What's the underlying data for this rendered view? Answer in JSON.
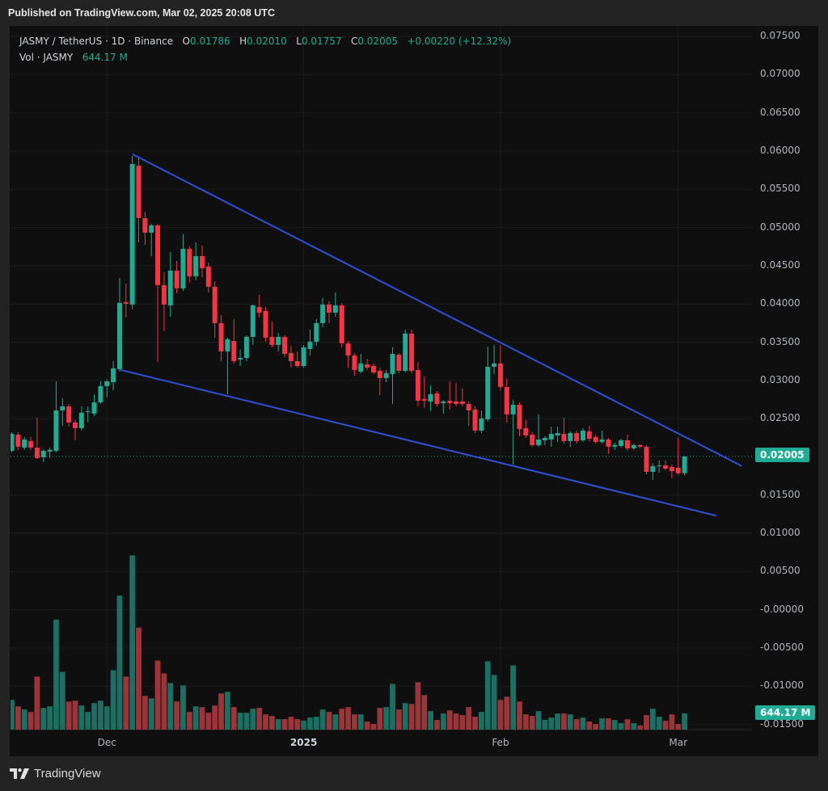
{
  "header": {
    "published": "Published on TradingView.com, Mar 02, 2025 20:08 UTC"
  },
  "legend": {
    "symbol": "JASMY / TetherUS · 1D · Binance",
    "o_label": "O",
    "o_value": "0.01786",
    "h_label": "H",
    "h_value": "0.02010",
    "l_label": "L",
    "l_value": "0.01757",
    "c_label": "C",
    "c_value": "0.02005",
    "change": "+0.00220 (+12.32%)",
    "vol_label": "Vol · JASMY",
    "vol_value": "644.17 M"
  },
  "price_tag": "0.02005",
  "volume_tag": "644.17 M",
  "brand": "TradingView",
  "colors": {
    "up": "#22ab94",
    "down": "#f23645",
    "up_volume": "#1d6f63",
    "down_volume": "#9b3539",
    "trendline": "#2f50d8",
    "background": "#0f0f0f"
  },
  "chart_data": {
    "type": "candlestick",
    "symbol": "JASMY / TetherUS",
    "interval": "1D",
    "exchange": "Binance",
    "ylim": [
      -0.0155,
      0.0765
    ],
    "grid": true,
    "price_axis_labels": [
      "0.07500",
      "0.07000",
      "0.06500",
      "0.06000",
      "0.05500",
      "0.05000",
      "0.04500",
      "0.04000",
      "0.03500",
      "0.03000",
      "0.02500",
      "0.01500",
      "0.01000",
      "0.00500",
      "-0.00000",
      "-0.00500",
      "-0.01000",
      "-0.01500"
    ],
    "time_axis_labels": [
      {
        "label": "Dec",
        "date": "2024-12-01",
        "bold": false
      },
      {
        "label": "2025",
        "date": "2025-01-01",
        "bold": true
      },
      {
        "label": "Feb",
        "date": "2025-02-01",
        "bold": false
      },
      {
        "label": "Mar",
        "date": "2025-03-01",
        "bold": false
      }
    ],
    "columns": [
      "date",
      "open",
      "high",
      "low",
      "close",
      "volume_M"
    ],
    "candles": [
      [
        "2024-11-16",
        0.02079,
        0.02322,
        0.02058,
        0.02301,
        1184
      ],
      [
        "2024-11-17",
        0.0229,
        0.02322,
        0.0209,
        0.02132,
        928
      ],
      [
        "2024-11-18",
        0.02121,
        0.02259,
        0.0209,
        0.02227,
        800
      ],
      [
        "2024-11-19",
        0.02206,
        0.02259,
        0.0209,
        0.02121,
        704
      ],
      [
        "2024-11-20",
        0.02121,
        0.02512,
        0.01973,
        0.01984,
        2112
      ],
      [
        "2024-11-21",
        0.01994,
        0.021,
        0.01931,
        0.02079,
        864
      ],
      [
        "2024-11-22",
        0.02068,
        0.02121,
        0.01984,
        0.0209,
        928
      ],
      [
        "2024-11-23",
        0.02079,
        0.02988,
        0.02058,
        0.02607,
        4384
      ],
      [
        "2024-11-24",
        0.02607,
        0.02766,
        0.02407,
        0.0266,
        2304
      ],
      [
        "2024-11-25",
        0.0266,
        0.02692,
        0.02396,
        0.02449,
        1120
      ],
      [
        "2024-11-26",
        0.02449,
        0.02481,
        0.02216,
        0.02375,
        1152
      ],
      [
        "2024-11-27",
        0.02375,
        0.0266,
        0.02343,
        0.02576,
        960
      ],
      [
        "2024-11-28",
        0.02586,
        0.0266,
        0.02449,
        0.02597,
        704
      ],
      [
        "2024-11-29",
        0.02565,
        0.02819,
        0.02533,
        0.02713,
        1056
      ],
      [
        "2024-11-30",
        0.02713,
        0.02988,
        0.02692,
        0.02925,
        1152
      ],
      [
        "2024-12-01",
        0.02925,
        0.0301,
        0.02777,
        0.02988,
        928
      ],
      [
        "2024-12-02",
        0.02977,
        0.03252,
        0.02872,
        0.03157,
        2368
      ],
      [
        "2024-12-03",
        0.03147,
        0.04341,
        0.03115,
        0.04013,
        5344
      ],
      [
        "2024-12-04",
        0.04024,
        0.04267,
        0.03823,
        0.04003,
        2112
      ],
      [
        "2024-12-05",
        0.03992,
        0.05937,
        0.03929,
        0.05831,
        6944
      ],
      [
        "2024-12-06",
        0.0581,
        0.05916,
        0.04806,
        0.05123,
        4064
      ],
      [
        "2024-12-07",
        0.05123,
        0.05208,
        0.04774,
        0.04933,
        1344
      ],
      [
        "2024-12-08",
        0.04933,
        0.05049,
        0.04626,
        0.05028,
        1248
      ],
      [
        "2024-12-09",
        0.05028,
        0.05049,
        0.03242,
        0.04246,
        2752
      ],
      [
        "2024-12-10",
        0.04246,
        0.04415,
        0.03643,
        0.03992,
        2240
      ],
      [
        "2024-12-11",
        0.03982,
        0.04679,
        0.03834,
        0.04436,
        1856
      ],
      [
        "2024-12-12",
        0.04436,
        0.04563,
        0.0414,
        0.04204,
        1120
      ],
      [
        "2024-12-13",
        0.04204,
        0.04912,
        0.04172,
        0.04721,
        1760
      ],
      [
        "2024-12-14",
        0.04721,
        0.04753,
        0.04278,
        0.04362,
        704
      ],
      [
        "2024-12-15",
        0.04362,
        0.04806,
        0.04309,
        0.04626,
        928
      ],
      [
        "2024-12-16",
        0.04626,
        0.04764,
        0.04352,
        0.04468,
        896
      ],
      [
        "2024-12-17",
        0.04489,
        0.04542,
        0.04151,
        0.04225,
        672
      ],
      [
        "2024-12-18",
        0.04225,
        0.04299,
        0.03559,
        0.03749,
        960
      ],
      [
        "2024-12-19",
        0.03749,
        0.03855,
        0.03252,
        0.03379,
        1440
      ],
      [
        "2024-12-20",
        0.03379,
        0.03559,
        0.02819,
        0.03538,
        1504
      ],
      [
        "2024-12-21",
        0.03516,
        0.03802,
        0.03221,
        0.03252,
        896
      ],
      [
        "2024-12-22",
        0.03273,
        0.034,
        0.03189,
        0.03294,
        672
      ],
      [
        "2024-12-23",
        0.03294,
        0.0359,
        0.03252,
        0.03569,
        672
      ],
      [
        "2024-12-24",
        0.03569,
        0.03992,
        0.03464,
        0.03982,
        832
      ],
      [
        "2024-12-25",
        0.0396,
        0.04119,
        0.03823,
        0.03886,
        864
      ],
      [
        "2024-12-26",
        0.03908,
        0.0396,
        0.03506,
        0.03559,
        608
      ],
      [
        "2024-12-27",
        0.03569,
        0.0377,
        0.03432,
        0.03464,
        544
      ],
      [
        "2024-12-28",
        0.03464,
        0.03622,
        0.03379,
        0.03569,
        416
      ],
      [
        "2024-12-29",
        0.03569,
        0.0359,
        0.03305,
        0.03347,
        416
      ],
      [
        "2024-12-30",
        0.03358,
        0.03453,
        0.03168,
        0.03252,
        512
      ],
      [
        "2024-12-31",
        0.03252,
        0.03379,
        0.03168,
        0.03189,
        416
      ],
      [
        "2025-01-01",
        0.03189,
        0.03464,
        0.03168,
        0.03432,
        352
      ],
      [
        "2025-01-02",
        0.03411,
        0.03664,
        0.03326,
        0.03506,
        480
      ],
      [
        "2025-01-03",
        0.03506,
        0.03802,
        0.03453,
        0.03749,
        512
      ],
      [
        "2025-01-04",
        0.03749,
        0.04077,
        0.03696,
        0.03992,
        800
      ],
      [
        "2025-01-05",
        0.03992,
        0.04034,
        0.03749,
        0.03886,
        704
      ],
      [
        "2025-01-06",
        0.03886,
        0.04151,
        0.03834,
        0.03982,
        608
      ],
      [
        "2025-01-07",
        0.03982,
        0.04013,
        0.03432,
        0.03485,
        832
      ],
      [
        "2025-01-08",
        0.03485,
        0.03516,
        0.03168,
        0.03326,
        896
      ],
      [
        "2025-01-09",
        0.03326,
        0.03358,
        0.03062,
        0.03136,
        608
      ],
      [
        "2025-01-10",
        0.03115,
        0.03347,
        0.03094,
        0.03221,
        608
      ],
      [
        "2025-01-11",
        0.0321,
        0.03284,
        0.03136,
        0.03168,
        320
      ],
      [
        "2025-01-12",
        0.03189,
        0.03221,
        0.03083,
        0.03104,
        224
      ],
      [
        "2025-01-13",
        0.03125,
        0.03168,
        0.02808,
        0.0303,
        864
      ],
      [
        "2025-01-14",
        0.0303,
        0.03136,
        0.02977,
        0.03094,
        896
      ],
      [
        "2025-01-15",
        0.03083,
        0.03432,
        0.02692,
        0.03347,
        1824
      ],
      [
        "2025-01-16",
        0.03337,
        0.03358,
        0.03094,
        0.03125,
        800
      ],
      [
        "2025-01-17",
        0.03125,
        0.03664,
        0.03104,
        0.03612,
        1056
      ],
      [
        "2025-01-18",
        0.03612,
        0.03664,
        0.03094,
        0.03125,
        1024
      ],
      [
        "2025-01-19",
        0.03136,
        0.03242,
        0.0266,
        0.02734,
        1888
      ],
      [
        "2025-01-20",
        0.02756,
        0.03051,
        0.02639,
        0.02734,
        1376
      ],
      [
        "2025-01-21",
        0.02724,
        0.02935,
        0.02597,
        0.02819,
        736
      ],
      [
        "2025-01-22",
        0.02829,
        0.02861,
        0.0266,
        0.02692,
        384
      ],
      [
        "2025-01-23",
        0.02703,
        0.02745,
        0.02565,
        0.02724,
        640
      ],
      [
        "2025-01-24",
        0.02734,
        0.02988,
        0.02618,
        0.02703,
        768
      ],
      [
        "2025-01-25",
        0.02724,
        0.02967,
        0.0266,
        0.02692,
        640
      ],
      [
        "2025-01-26",
        0.02724,
        0.02893,
        0.0266,
        0.02692,
        576
      ],
      [
        "2025-01-27",
        0.02692,
        0.02724,
        0.02407,
        0.02607,
        896
      ],
      [
        "2025-01-28",
        0.02618,
        0.0266,
        0.02311,
        0.02343,
        512
      ],
      [
        "2025-01-29",
        0.02343,
        0.02607,
        0.02311,
        0.02502,
        704
      ],
      [
        "2025-01-30",
        0.02491,
        0.03442,
        0.0246,
        0.03178,
        2720
      ],
      [
        "2025-01-31",
        0.03178,
        0.03464,
        0.03083,
        0.03221,
        2176
      ],
      [
        "2025-02-01",
        0.03221,
        0.03464,
        0.02872,
        0.02914,
        1184
      ],
      [
        "2025-02-02",
        0.02914,
        0.0303,
        0.02449,
        0.02555,
        1312
      ],
      [
        "2025-02-03",
        0.02555,
        0.02745,
        0.01899,
        0.02681,
        2560
      ],
      [
        "2025-02-04",
        0.02681,
        0.02713,
        0.02269,
        0.02364,
        1120
      ],
      [
        "2025-02-05",
        0.02375,
        0.02481,
        0.02248,
        0.0228,
        608
      ],
      [
        "2025-02-06",
        0.0229,
        0.02322,
        0.02132,
        0.02153,
        544
      ],
      [
        "2025-02-07",
        0.02153,
        0.02555,
        0.02132,
        0.02227,
        736
      ],
      [
        "2025-02-08",
        0.02216,
        0.02269,
        0.02153,
        0.02248,
        384
      ],
      [
        "2025-02-09",
        0.02227,
        0.02396,
        0.02132,
        0.02301,
        480
      ],
      [
        "2025-02-10",
        0.0228,
        0.02396,
        0.02195,
        0.02311,
        640
      ],
      [
        "2025-02-11",
        0.02301,
        0.02512,
        0.02174,
        0.02206,
        640
      ],
      [
        "2025-02-12",
        0.02206,
        0.02333,
        0.02132,
        0.02311,
        608
      ],
      [
        "2025-02-13",
        0.02311,
        0.02343,
        0.02174,
        0.02206,
        416
      ],
      [
        "2025-02-14",
        0.02216,
        0.02375,
        0.02195,
        0.02343,
        480
      ],
      [
        "2025-02-15",
        0.02333,
        0.02407,
        0.02206,
        0.02237,
        320
      ],
      [
        "2025-02-16",
        0.02259,
        0.0229,
        0.02174,
        0.02195,
        224
      ],
      [
        "2025-02-17",
        0.02195,
        0.02343,
        0.02174,
        0.02227,
        448
      ],
      [
        "2025-02-18",
        0.02227,
        0.02248,
        0.02037,
        0.02132,
        448
      ],
      [
        "2025-02-19",
        0.02132,
        0.02185,
        0.0209,
        0.02153,
        384
      ],
      [
        "2025-02-20",
        0.02142,
        0.02237,
        0.02121,
        0.02216,
        256
      ],
      [
        "2025-02-21",
        0.02216,
        0.0229,
        0.02079,
        0.02111,
        416
      ],
      [
        "2025-02-22",
        0.02111,
        0.02174,
        0.0209,
        0.02153,
        256
      ],
      [
        "2025-02-23",
        0.02153,
        0.02164,
        0.02111,
        0.02132,
        160
      ],
      [
        "2025-02-24",
        0.02132,
        0.02153,
        0.01772,
        0.01804,
        576
      ],
      [
        "2025-02-25",
        0.01804,
        0.0192,
        0.01698,
        0.01878,
        832
      ],
      [
        "2025-02-26",
        0.01878,
        0.01952,
        0.01793,
        0.01888,
        512
      ],
      [
        "2025-02-27",
        0.01888,
        0.01952,
        0.01825,
        0.01846,
        352
      ],
      [
        "2025-02-28",
        0.01867,
        0.01899,
        0.01719,
        0.01814,
        608
      ],
      [
        "2025-03-01",
        0.01857,
        0.02248,
        0.01762,
        0.01785,
        224
      ],
      [
        "2025-03-02",
        0.01786,
        0.0201,
        0.01757,
        0.02005,
        644.17
      ]
    ],
    "trendlines": [
      {
        "from": {
          "date": "2024-12-05",
          "price": 0.0596
        },
        "to": {
          "date": "2025-03-11",
          "price": 0.0188
        }
      },
      {
        "from": {
          "date": "2024-12-03",
          "price": 0.0314
        },
        "to": {
          "date": "2025-03-07",
          "price": 0.0123
        }
      }
    ],
    "last_price_line": 0.02005
  }
}
